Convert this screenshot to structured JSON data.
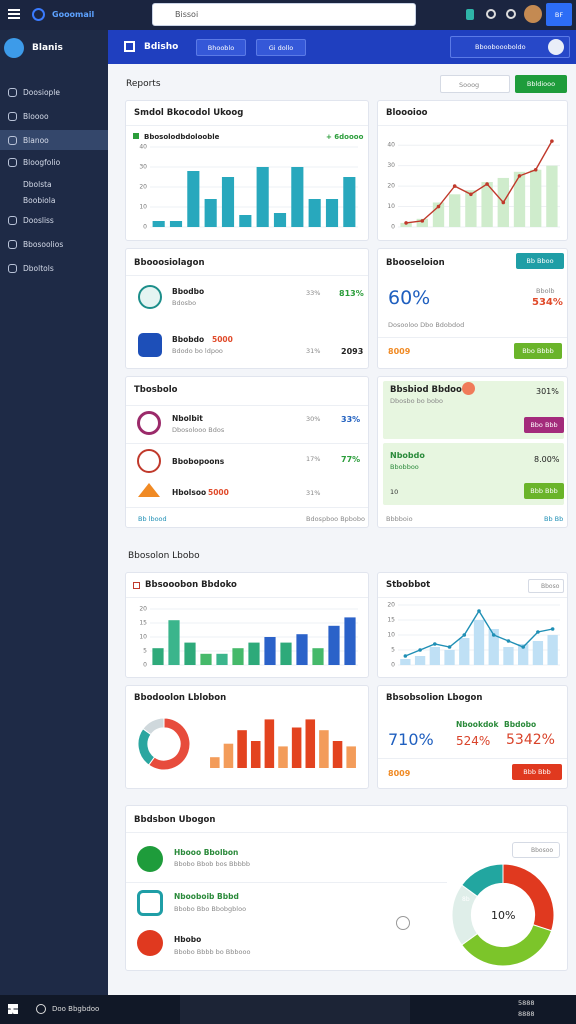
{
  "topbar": {
    "brand": "Gooomail",
    "search": "Bissoi",
    "badge": "BF"
  },
  "sidebar": {
    "title": "Blanis",
    "items": [
      "Doosiople",
      "Bloooo",
      "Blanoo",
      "Bloogfolio",
      "Dbolsta",
      "Boobiola",
      "Doosliss",
      "Bbosoolios",
      "Dboltols"
    ]
  },
  "header": {
    "title": "Bdisho",
    "tabs": [
      "Bhooblo",
      "Gi dollo"
    ],
    "search": "Bbooboooboldo"
  },
  "reports": {
    "title": "Reports",
    "search": "Sooog",
    "button": "Bbldiooo"
  },
  "cards": {
    "sales": {
      "title": "Smdol Bkocodol Ukoog",
      "legend": "Bbosolodbdolooble",
      "delta": "+ 6doooo"
    },
    "trend": {
      "title": "Bloooioo"
    },
    "accounts": {
      "title": "Bbooosiolagon",
      "rows": [
        {
          "name": "Bbodbo",
          "sub": "Bdosbo",
          "a": "33%",
          "b": "813%"
        },
        {
          "name": "Bbobdo",
          "extra": "5000",
          "sub": "Bdodo bo ldpoo",
          "a": "31%",
          "b": "2093"
        }
      ]
    },
    "summary": {
      "title": "Bbooseloion",
      "button": "Bb Bboo",
      "big": "60%",
      "side": "Bbolb",
      "side_value": "534%",
      "sub": "Dosooloo Dbo Bdobdod",
      "amount": "8009",
      "button2": "Bbo Bbbb"
    },
    "tasks": {
      "title": "Tbosbolo",
      "rows": [
        {
          "name": "Nbolbit",
          "sub": "Dbosolooo Bdos",
          "a": "30%",
          "b": "33%"
        },
        {
          "name": "Bbobopoons",
          "a": "17%",
          "b": "77%"
        },
        {
          "name": "Hbolsoo",
          "extra": "5000",
          "a": "31%"
        }
      ],
      "foot_left": "Bb lbood",
      "foot_right": "Bdospboo Bpbobo"
    },
    "goals": {
      "title": "Bbsbiod Bbdoo",
      "sub": "Dbosbo bo bobo",
      "value": "301%",
      "button": "Bbo Bbb",
      "title2": "Nbobdo",
      "sub2": "Bbobboo",
      "value2": "8.00%",
      "count": "10",
      "button2": "Bbb Bbb",
      "foot_left": "Bbbboio",
      "foot_right": "Bb Bb"
    },
    "section": "Bbosolon Lbobo",
    "income": {
      "title": "Bbsooobon Bbdoko"
    },
    "stats": {
      "title": "Stbobbot",
      "search": "Bboso"
    },
    "spend": {
      "title": "Bbodoolon Lblobon"
    },
    "kpi": {
      "title": "Bbsobsolion Lbogon",
      "label1": "Nbookdok",
      "label2": "Bbdobo",
      "v1": "710%",
      "v2": "524%",
      "v3": "5342%",
      "amount": "8009",
      "button": "Bbb Bbb"
    },
    "team": {
      "title": "Bbdsbon Ubogon",
      "search": "Bbosoo",
      "center": "10%",
      "tag": "8b",
      "items": [
        {
          "name": "Hbooo Bbolbon",
          "sub": "Bbobo Bbob bos Bbbbb"
        },
        {
          "name": "Nbooboib Bbbd",
          "sub": "Bbobo Bbo Bbobgbloo"
        },
        {
          "name": "Hbobo",
          "sub": "Bbobo Bbbb bo Bbbooo"
        }
      ]
    }
  },
  "taskbar": {
    "search": "Doo Bbgbdoo",
    "time": "5888",
    "date": "8888"
  },
  "chart_data": [
    {
      "type": "bar",
      "ylim": [
        0,
        40
      ],
      "yticks": [
        0,
        10,
        20,
        30,
        40
      ],
      "series": [
        {
          "color": "#28a8bd",
          "values": [
            3,
            3,
            28,
            14,
            25,
            6,
            30,
            7,
            30,
            14,
            14,
            25
          ]
        }
      ]
    },
    {
      "type": "combo",
      "ylim": [
        0,
        45
      ],
      "yticks": [
        0,
        10,
        20,
        30,
        40
      ],
      "series": [
        {
          "kind": "bar",
          "color": "#cfeccc",
          "values": [
            2,
            4,
            12,
            16,
            18,
            22,
            24,
            27,
            28,
            30
          ]
        },
        {
          "kind": "line",
          "color": "#c0392b",
          "values": [
            2,
            3,
            10,
            20,
            16,
            21,
            12,
            25,
            28,
            42
          ]
        }
      ]
    },
    {
      "type": "bar",
      "ylim": [
        0,
        20
      ],
      "yticks": [
        0,
        5,
        10,
        15,
        20
      ],
      "series": [
        {
          "colors": [
            "#2eaa7a",
            "#3bb58c",
            "#2eaa7a",
            "#45b96a",
            "#3bb58c",
            "#45b96a",
            "#2eaa7a",
            "#2b62c9",
            "#2eaa7a",
            "#2b62c9",
            "#45b96a",
            "#2b62c9",
            "#2b62c9"
          ],
          "values": [
            6,
            16,
            8,
            4,
            4,
            6,
            8,
            10,
            8,
            11,
            6,
            14,
            17
          ]
        }
      ]
    },
    {
      "type": "combo",
      "ylim": [
        0,
        20
      ],
      "yticks": [
        0,
        5,
        10,
        15,
        20
      ],
      "series": [
        {
          "kind": "bar",
          "color": "#bfe0f5",
          "values": [
            2,
            3,
            6,
            5,
            9,
            15,
            12,
            6,
            7,
            8,
            10
          ]
        },
        {
          "kind": "line",
          "color": "#1f8fb5",
          "values": [
            3,
            5,
            7,
            6,
            10,
            18,
            10,
            8,
            6,
            11,
            12
          ]
        }
      ]
    },
    {
      "type": "pie",
      "series": [
        {
          "colors": [
            "#e74c3c",
            "#2aa6a0",
            "#cfd8dc"
          ],
          "values": [
            60,
            25,
            15
          ]
        }
      ]
    },
    {
      "type": "bar",
      "ylim": [
        0,
        20
      ],
      "series": [
        {
          "colors": [
            "#f39c5a",
            "#f39c5a",
            "#e3431f",
            "#e3431f",
            "#e3431f",
            "#f39c5a",
            "#e3431f",
            "#e3431f",
            "#f39c5a",
            "#e3431f",
            "#f39c5a"
          ],
          "values": [
            4,
            9,
            14,
            10,
            18,
            8,
            15,
            18,
            14,
            10,
            8
          ]
        }
      ]
    },
    {
      "type": "pie",
      "series": [
        {
          "colors": [
            "#e0391f",
            "#7cc52a",
            "#dfeee9",
            "#22a6a0"
          ],
          "values": [
            30,
            35,
            20,
            15
          ]
        }
      ]
    }
  ]
}
